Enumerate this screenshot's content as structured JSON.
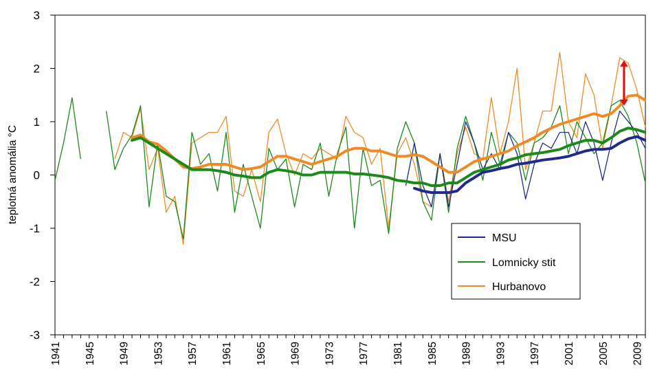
{
  "chart_data": {
    "type": "line",
    "title": "",
    "xlabel": "",
    "ylabel": "teplotná anomália °C",
    "xlim": [
      1941,
      2010
    ],
    "ylim": [
      -3,
      3
    ],
    "yticks": [
      -3,
      -2,
      -1,
      0,
      1,
      2,
      3
    ],
    "xticks": [
      1941,
      1945,
      1949,
      1953,
      1957,
      1961,
      1965,
      1969,
      1973,
      1977,
      1981,
      1985,
      1989,
      1993,
      1997,
      2001,
      2005,
      2009
    ],
    "grid": false,
    "legend_position": "lower-right",
    "series": [
      {
        "name": "MSU",
        "color": "#1f2a8c",
        "raw": {
          "x": [
            1982,
            1983,
            1984,
            1985,
            1986,
            1987,
            1988,
            1989,
            1990,
            1991,
            1992,
            1993,
            1994,
            1995,
            1996,
            1997,
            1998,
            1999,
            2000,
            2001,
            2002,
            2003,
            2004,
            2005,
            2006,
            2007,
            2008,
            2009,
            2010
          ],
          "y": [
            -0.2,
            0.6,
            -0.2,
            -0.6,
            0.4,
            -0.6,
            0.2,
            1.0,
            0.6,
            0.1,
            0.4,
            0.1,
            0.8,
            0.4,
            -0.45,
            0.2,
            0.6,
            0.5,
            0.8,
            0.8,
            0.4,
            1.0,
            0.6,
            -0.1,
            0.6,
            1.2,
            1.0,
            0.8,
            0.5
          ]
        },
        "smooth": {
          "x": [
            1983,
            1984,
            1985,
            1986,
            1987,
            1988,
            1989,
            1990,
            1991,
            1992,
            1993,
            1994,
            1995,
            1996,
            1997,
            1998,
            1999,
            2000,
            2001,
            2002,
            2003,
            2004,
            2005,
            2006,
            2007,
            2008,
            2009,
            2010
          ],
          "y": [
            -0.25,
            -0.3,
            -0.33,
            -0.33,
            -0.33,
            -0.3,
            -0.15,
            -0.05,
            0.05,
            0.08,
            0.12,
            0.15,
            0.2,
            0.22,
            0.25,
            0.28,
            0.3,
            0.32,
            0.35,
            0.4,
            0.45,
            0.48,
            0.48,
            0.5,
            0.6,
            0.68,
            0.72,
            0.65
          ]
        }
      },
      {
        "name": "Lomnicky stit",
        "color": "#1a8a1a",
        "raw": {
          "x": [
            1941,
            1942,
            1943,
            1944,
            null,
            1947,
            1948,
            1949,
            1950,
            1951,
            1952,
            1953,
            1954,
            1955,
            1956,
            1957,
            1958,
            1959,
            1960,
            1961,
            1962,
            1963,
            1964,
            1965,
            1966,
            1967,
            1968,
            1969,
            1970,
            1971,
            1972,
            1973,
            1974,
            1975,
            1976,
            1977,
            1978,
            1979,
            1980,
            1981,
            1982,
            1983,
            1984,
            1985,
            1986,
            1987,
            1988,
            1989,
            1990,
            1991,
            1992,
            1993,
            1994,
            1995,
            1996,
            1997,
            1998,
            1999,
            2000,
            2001,
            2002,
            2003,
            2004,
            2005,
            2006,
            2007,
            2008,
            2009,
            2010
          ],
          "y": [
            -0.1,
            0.6,
            1.45,
            0.3,
            null,
            1.2,
            0.1,
            0.5,
            0.75,
            1.3,
            -0.6,
            0.6,
            -0.4,
            -0.5,
            -1.2,
            0.8,
            0.2,
            0.4,
            -0.3,
            0.8,
            -0.7,
            0.2,
            -0.4,
            -1.0,
            0.5,
            0.1,
            0.3,
            -0.6,
            0.2,
            0.1,
            0.6,
            -0.4,
            0.4,
            0.9,
            -1.0,
            0.5,
            -0.2,
            -0.1,
            -1.1,
            0.5,
            1.0,
            0.6,
            -0.5,
            -0.85,
            0.4,
            -0.7,
            0.5,
            1.1,
            0.6,
            -0.1,
            0.8,
            0.2,
            0.8,
            0.6,
            -0.1,
            0.6,
            0.7,
            0.9,
            1.3,
            0.4,
            1.0,
            0.7,
            0.4,
            0.6,
            1.3,
            1.4,
            1.1,
            0.6,
            -0.15
          ]
        },
        "smooth": {
          "x": [
            1950,
            1951,
            1952,
            1953,
            1954,
            1955,
            1956,
            1957,
            1958,
            1959,
            1960,
            1961,
            1962,
            1963,
            1964,
            1965,
            1966,
            1967,
            1968,
            1969,
            1970,
            1971,
            1972,
            1973,
            1974,
            1975,
            1976,
            1977,
            1978,
            1979,
            1980,
            1981,
            1982,
            1983,
            1984,
            1985,
            1986,
            1987,
            1988,
            1989,
            1990,
            1991,
            1992,
            1993,
            1994,
            1995,
            1996,
            1997,
            1998,
            1999,
            2000,
            2001,
            2002,
            2003,
            2004,
            2005,
            2006,
            2007,
            2008,
            2009,
            2010
          ],
          "y": [
            0.65,
            0.7,
            0.6,
            0.5,
            0.4,
            0.3,
            0.2,
            0.1,
            0.1,
            0.1,
            0.08,
            0.05,
            0.0,
            -0.02,
            -0.05,
            -0.05,
            0.05,
            0.1,
            0.08,
            0.05,
            0.0,
            0.0,
            0.05,
            0.05,
            0.05,
            0.05,
            0.02,
            0.02,
            0.0,
            -0.02,
            -0.05,
            -0.1,
            -0.12,
            -0.15,
            -0.15,
            -0.2,
            -0.2,
            -0.15,
            -0.15,
            -0.05,
            0.05,
            0.1,
            0.15,
            0.2,
            0.28,
            0.32,
            0.38,
            0.4,
            0.42,
            0.45,
            0.48,
            0.55,
            0.6,
            0.65,
            0.65,
            0.6,
            0.7,
            0.82,
            0.88,
            0.85,
            0.8
          ]
        }
      },
      {
        "name": "Hurbanovo",
        "color": "#f08a24",
        "raw": {
          "x": [
            1948,
            1949,
            1950,
            1951,
            1952,
            1953,
            1954,
            1955,
            1956,
            1957,
            1958,
            1959,
            1960,
            1961,
            1962,
            1963,
            1964,
            1965,
            1966,
            1967,
            1968,
            1969,
            1970,
            1971,
            1972,
            1973,
            1974,
            1975,
            1976,
            1977,
            1978,
            1979,
            1980,
            1981,
            1982,
            1983,
            1984,
            1985,
            1986,
            1987,
            1988,
            1989,
            1990,
            1991,
            1992,
            1993,
            1994,
            1995,
            1996,
            1997,
            1998,
            1999,
            2000,
            2001,
            2002,
            2003,
            2004,
            2005,
            2006,
            2007,
            2008,
            2009,
            2010
          ],
          "y": [
            0.3,
            0.8,
            0.7,
            1.25,
            0.1,
            0.5,
            -0.7,
            -0.4,
            -1.3,
            0.6,
            0.7,
            0.8,
            0.8,
            1.1,
            -0.3,
            -0.4,
            0.1,
            -0.5,
            0.8,
            1.05,
            0.4,
            0.0,
            0.4,
            0.3,
            0.5,
            0.4,
            0.3,
            1.1,
            0.8,
            0.7,
            0.2,
            0.5,
            -1.0,
            0.4,
            0.7,
            0.2,
            -0.5,
            -0.6,
            0.4,
            -0.5,
            0.4,
            0.9,
            0.4,
            0.3,
            1.45,
            0.4,
            1.0,
            2.0,
            0.1,
            0.6,
            1.2,
            1.2,
            2.3,
            1.0,
            0.7,
            1.9,
            1.5,
            0.5,
            1.3,
            2.2,
            2.1,
            1.6,
            0.9
          ]
        },
        "smooth": {
          "x": [
            1950,
            1951,
            1952,
            1953,
            1954,
            1955,
            1956,
            1957,
            1958,
            1959,
            1960,
            1961,
            1962,
            1963,
            1964,
            1965,
            1966,
            1967,
            1968,
            1969,
            1970,
            1971,
            1972,
            1973,
            1974,
            1975,
            1976,
            1977,
            1978,
            1979,
            1980,
            1981,
            1982,
            1983,
            1984,
            1985,
            1986,
            1987,
            1988,
            1989,
            1990,
            1991,
            1992,
            1993,
            1994,
            1995,
            1996,
            1997,
            1998,
            1999,
            2000,
            2001,
            2002,
            2003,
            2004,
            2005,
            2006,
            2007,
            2008,
            2009,
            2010
          ],
          "y": [
            0.7,
            0.75,
            0.62,
            0.58,
            0.45,
            0.3,
            0.15,
            0.12,
            0.15,
            0.2,
            0.2,
            0.2,
            0.15,
            0.1,
            0.12,
            0.15,
            0.25,
            0.35,
            0.35,
            0.3,
            0.25,
            0.2,
            0.25,
            0.3,
            0.35,
            0.45,
            0.5,
            0.5,
            0.45,
            0.45,
            0.4,
            0.35,
            0.35,
            0.38,
            0.35,
            0.25,
            0.15,
            0.05,
            0.05,
            0.15,
            0.25,
            0.3,
            0.35,
            0.4,
            0.45,
            0.55,
            0.62,
            0.7,
            0.8,
            0.88,
            0.95,
            1.0,
            1.05,
            1.1,
            1.15,
            1.1,
            1.15,
            1.3,
            1.48,
            1.5,
            1.4
          ]
        }
      }
    ],
    "annotations": [
      {
        "type": "double-arrow",
        "color": "#e01010",
        "x": 2007.5,
        "y_from": 1.3,
        "y_to": 2.15
      }
    ]
  }
}
